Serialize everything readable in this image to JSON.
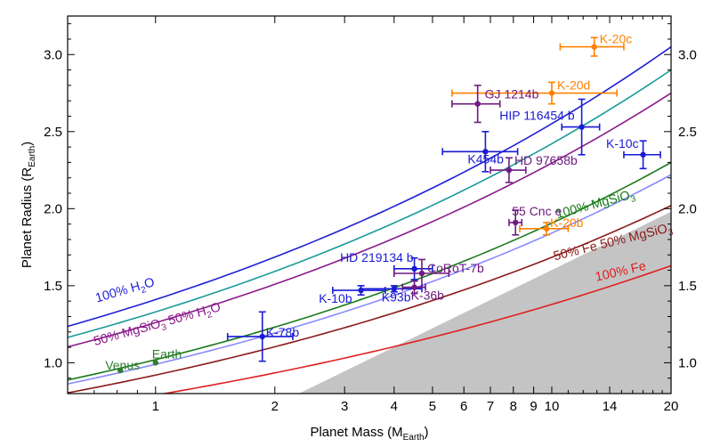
{
  "chart_data": {
    "type": "scatter",
    "xlabel": {
      "main": "Planet Mass (M",
      "sub": "Earth",
      "tail": ")"
    },
    "ylabel": {
      "main": "Planet Radius (R",
      "sub": "Earth",
      "tail": ")"
    },
    "x_scale": "log",
    "xlim": [
      0.6,
      20
    ],
    "ylim": [
      0.8,
      3.25
    ],
    "x_ticks": [
      1,
      2,
      3,
      4,
      5,
      6,
      7,
      8,
      9,
      10,
      14,
      20
    ],
    "y_ticks": [
      1.0,
      1.5,
      2.0,
      2.5,
      3.0
    ],
    "y_tick_labels": [
      "1.0",
      "1.5",
      "2.0",
      "2.5",
      "3.0"
    ],
    "y_ticks_right": true,
    "excluded_region": {
      "color": "#c4c4c4"
    },
    "curves": [
      {
        "name": "100% H2O",
        "label_parts": [
          [
            "100% H",
            ""
          ],
          [
            "2",
            "sub"
          ],
          [
            "O",
            ""
          ]
        ],
        "color": "#1f1fd6",
        "r_at_1": 1.41,
        "r_at_20": 3.05
      },
      {
        "name": "",
        "color": "#1a9a9a",
        "r_at_1": 1.33,
        "r_at_20": 2.9
      },
      {
        "name": "50% MgSiO3 50% H2O",
        "label_parts": [
          [
            "50% MgSiO",
            ""
          ],
          [
            "3",
            "sub"
          ],
          [
            " 50% H",
            ""
          ],
          [
            "2",
            "sub"
          ],
          [
            "O",
            ""
          ]
        ],
        "color": "#8a1a8a",
        "r_at_1": 1.26,
        "r_at_20": 2.75
      },
      {
        "name": "100% MgSiO3",
        "label_parts": [
          [
            "100% MgSiO",
            ""
          ],
          [
            "3",
            "sub"
          ]
        ],
        "color": "#1a7a1a",
        "r_at_1": 1.02,
        "r_at_20": 2.3
      },
      {
        "name": "",
        "color": "#8a8aff",
        "r_at_1": 0.99,
        "r_at_20": 2.22
      },
      {
        "name": "50% Fe 50% MgSiO3",
        "label_parts": [
          [
            "50% Fe 50% MgSiO",
            ""
          ],
          [
            "3",
            "sub"
          ]
        ],
        "color": "#8b1a1a",
        "r_at_1": 0.92,
        "r_at_20": 2.02
      },
      {
        "name": "100% Fe",
        "label_parts": [
          [
            "100% Fe",
            ""
          ]
        ],
        "color": "#e02020",
        "r_at_1": 0.79,
        "r_at_20": 1.63
      }
    ],
    "planets": [
      {
        "name": "K-20c",
        "mass": 12.8,
        "mass_lo": 10.5,
        "mass_hi": 15.2,
        "radius": 3.05,
        "r_err": 0.06,
        "color": "#ff8000"
      },
      {
        "name": "K-20d",
        "mass": 10.0,
        "mass_lo": 5.6,
        "mass_hi": 14.6,
        "radius": 2.75,
        "r_err": 0.07,
        "color": "#ff8000"
      },
      {
        "name": "GJ 1214b",
        "mass": 6.5,
        "mass_lo": 5.6,
        "mass_hi": 7.4,
        "radius": 2.68,
        "r_err": 0.12,
        "color": "#6e1a80"
      },
      {
        "name": "HIP 116454 b",
        "mass": 11.9,
        "mass_lo": 10.6,
        "mass_hi": 13.2,
        "radius": 2.53,
        "r_err": 0.18,
        "color": "#1a1ad6"
      },
      {
        "name": "K-10c",
        "mass": 17.0,
        "mass_lo": 15.2,
        "mass_hi": 18.8,
        "radius": 2.35,
        "r_err": 0.09,
        "color": "#1a1ad6"
      },
      {
        "name": "K454b",
        "mass": 6.8,
        "mass_lo": 5.3,
        "mass_hi": 8.2,
        "radius": 2.37,
        "r_err": 0.13,
        "color": "#1a1ad6"
      },
      {
        "name": "HD 97658b",
        "mass": 7.8,
        "mass_lo": 7.0,
        "mass_hi": 8.6,
        "radius": 2.25,
        "r_err": 0.08,
        "color": "#6e1a80"
      },
      {
        "name": "55 Cnc e",
        "mass": 8.1,
        "mass_lo": 7.8,
        "mass_hi": 8.4,
        "radius": 1.91,
        "r_err": 0.08,
        "color": "#6e1a80"
      },
      {
        "name": "K-20b",
        "mass": 9.7,
        "mass_lo": 8.3,
        "mass_hi": 11.0,
        "radius": 1.87,
        "r_err": 0.04,
        "color": "#ff8000"
      },
      {
        "name": "HD 219134 b",
        "mass": 4.5,
        "mass_lo": 4.0,
        "mass_hi": 5.0,
        "radius": 1.61,
        "r_err": 0.07,
        "color": "#1a1ad6"
      },
      {
        "name": "CoRoT-7b",
        "mass": 4.7,
        "mass_lo": 4.0,
        "mass_hi": 5.5,
        "radius": 1.58,
        "r_err": 0.09,
        "color": "#6e1a80"
      },
      {
        "name": "K-10b",
        "mass": 3.3,
        "mass_lo": 2.8,
        "mass_hi": 3.8,
        "radius": 1.47,
        "r_err": 0.03,
        "color": "#1a1ad6"
      },
      {
        "name": "K93b",
        "mass": 4.0,
        "mass_lo": 3.3,
        "mass_hi": 4.7,
        "radius": 1.48,
        "r_err": 0.02,
        "color": "#1a1ad6"
      },
      {
        "name": "K-36b",
        "mass": 4.5,
        "mass_lo": 4.2,
        "mass_hi": 4.8,
        "radius": 1.49,
        "r_err": 0.04,
        "color": "#6e1a80"
      },
      {
        "name": "K-78b",
        "mass": 1.86,
        "mass_lo": 1.52,
        "mass_hi": 2.22,
        "radius": 1.17,
        "r_err": 0.16,
        "color": "#1a1ad6"
      },
      {
        "name": "Venus",
        "mass": 0.815,
        "radius": 0.95,
        "color": "#2e7d32"
      },
      {
        "name": "Earth",
        "mass": 1.0,
        "radius": 1.0,
        "color": "#2e7d32"
      }
    ]
  }
}
